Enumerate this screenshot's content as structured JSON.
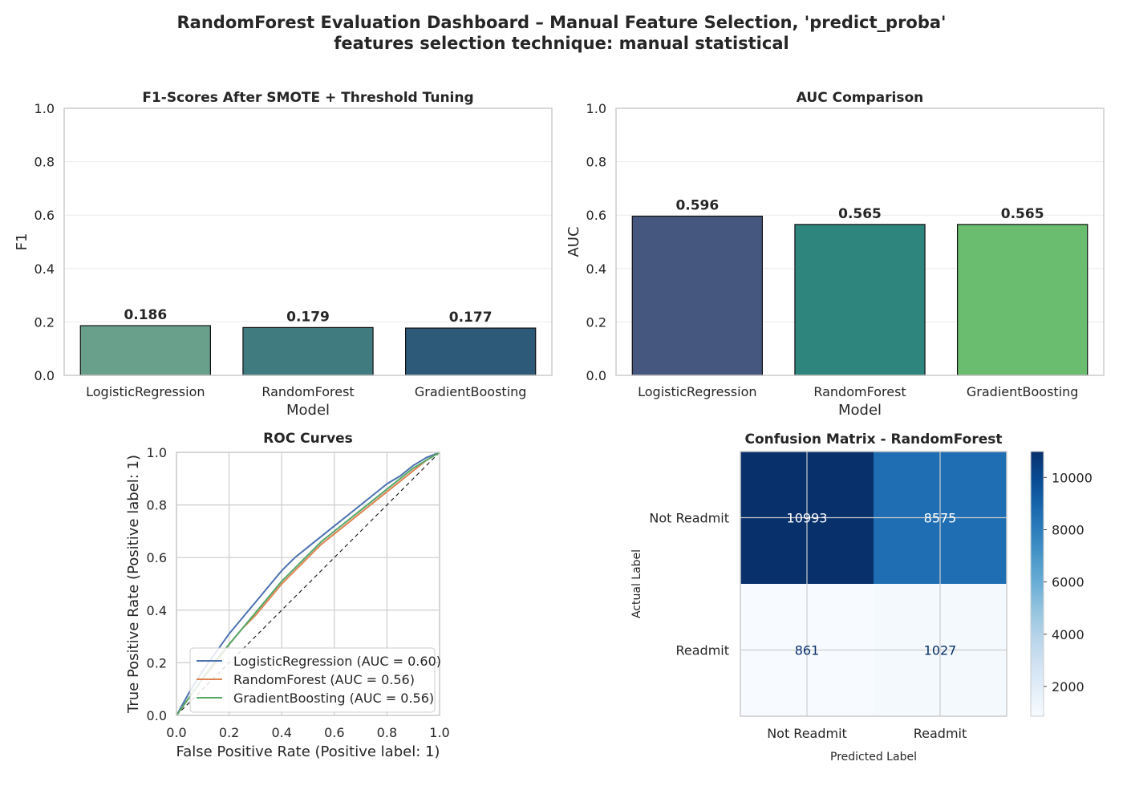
{
  "figure": {
    "title_line1": "RandomForest Evaluation Dashboard – Manual Feature Selection, 'predict_proba'",
    "title_line2": "features selection technique: manual statistical"
  },
  "chart_data": [
    {
      "id": "f1",
      "type": "bar",
      "title": "F1-Scores After SMOTE + Threshold Tuning",
      "xlabel": "Model",
      "ylabel": "F1",
      "categories": [
        "LogisticRegression",
        "RandomForest",
        "GradientBoosting"
      ],
      "values": [
        0.186,
        0.179,
        0.177
      ],
      "value_labels": [
        "0.186",
        "0.179",
        "0.177"
      ],
      "bar_colors": [
        "#69a08b",
        "#407b80",
        "#2d5a79"
      ],
      "ylim": [
        0,
        1.0
      ],
      "yticks": [
        0.0,
        0.2,
        0.4,
        0.6,
        0.8,
        1.0
      ],
      "ytick_labels": [
        "0.0",
        "0.2",
        "0.4",
        "0.6",
        "0.8",
        "1.0"
      ],
      "grid": true
    },
    {
      "id": "auc",
      "type": "bar",
      "title": "AUC Comparison",
      "xlabel": "Model",
      "ylabel": "AUC",
      "categories": [
        "LogisticRegression",
        "RandomForest",
        "GradientBoosting"
      ],
      "values": [
        0.596,
        0.565,
        0.565
      ],
      "value_labels": [
        "0.596",
        "0.565",
        "0.565"
      ],
      "bar_colors": [
        "#46577f",
        "#2e857e",
        "#6abd6e"
      ],
      "ylim": [
        0,
        1.0
      ],
      "yticks": [
        0.0,
        0.2,
        0.4,
        0.6,
        0.8,
        1.0
      ],
      "ytick_labels": [
        "0.0",
        "0.2",
        "0.4",
        "0.6",
        "0.8",
        "1.0"
      ],
      "grid": true
    },
    {
      "id": "roc",
      "type": "line",
      "title": "ROC Curves",
      "xlabel": "False Positive Rate (Positive label: 1)",
      "ylabel": "True Positive Rate (Positive label: 1)",
      "xlim": [
        0,
        1.0
      ],
      "ylim": [
        0,
        1.0
      ],
      "ticks": [
        0.0,
        0.2,
        0.4,
        0.6,
        0.8,
        1.0
      ],
      "tick_labels": [
        "0.0",
        "0.2",
        "0.4",
        "0.6",
        "0.8",
        "1.0"
      ],
      "grid": true,
      "legend_position": "lower-right",
      "series": [
        {
          "name": "LogisticRegression (AUC = 0.60)",
          "color": "#4c72b0",
          "points": [
            [
              0,
              0
            ],
            [
              0.05,
              0.09
            ],
            [
              0.1,
              0.17
            ],
            [
              0.15,
              0.24
            ],
            [
              0.2,
              0.31
            ],
            [
              0.25,
              0.37
            ],
            [
              0.3,
              0.43
            ],
            [
              0.35,
              0.49
            ],
            [
              0.4,
              0.55
            ],
            [
              0.45,
              0.6
            ],
            [
              0.5,
              0.64
            ],
            [
              0.55,
              0.68
            ],
            [
              0.6,
              0.72
            ],
            [
              0.65,
              0.76
            ],
            [
              0.7,
              0.8
            ],
            [
              0.75,
              0.84
            ],
            [
              0.8,
              0.88
            ],
            [
              0.85,
              0.91
            ],
            [
              0.9,
              0.95
            ],
            [
              0.95,
              0.98
            ],
            [
              1,
              1
            ]
          ]
        },
        {
          "name": "RandomForest (AUC = 0.56)",
          "color": "#dd8452",
          "points": [
            [
              0,
              0
            ],
            [
              0.05,
              0.07
            ],
            [
              0.1,
              0.14
            ],
            [
              0.15,
              0.2
            ],
            [
              0.2,
              0.27
            ],
            [
              0.25,
              0.33
            ],
            [
              0.3,
              0.38
            ],
            [
              0.35,
              0.44
            ],
            [
              0.4,
              0.5
            ],
            [
              0.45,
              0.55
            ],
            [
              0.5,
              0.6
            ],
            [
              0.55,
              0.65
            ],
            [
              0.6,
              0.69
            ],
            [
              0.65,
              0.73
            ],
            [
              0.7,
              0.77
            ],
            [
              0.75,
              0.81
            ],
            [
              0.8,
              0.85
            ],
            [
              0.85,
              0.89
            ],
            [
              0.9,
              0.93
            ],
            [
              0.95,
              0.97
            ],
            [
              1,
              1
            ]
          ]
        },
        {
          "name": "GradientBoosting (AUC = 0.56)",
          "color": "#55a868",
          "points": [
            [
              0,
              0
            ],
            [
              0.05,
              0.07
            ],
            [
              0.1,
              0.14
            ],
            [
              0.15,
              0.21
            ],
            [
              0.2,
              0.27
            ],
            [
              0.25,
              0.33
            ],
            [
              0.3,
              0.39
            ],
            [
              0.35,
              0.45
            ],
            [
              0.4,
              0.51
            ],
            [
              0.45,
              0.56
            ],
            [
              0.5,
              0.61
            ],
            [
              0.55,
              0.66
            ],
            [
              0.6,
              0.7
            ],
            [
              0.65,
              0.74
            ],
            [
              0.7,
              0.78
            ],
            [
              0.75,
              0.82
            ],
            [
              0.8,
              0.86
            ],
            [
              0.85,
              0.9
            ],
            [
              0.9,
              0.94
            ],
            [
              0.95,
              0.97
            ],
            [
              1,
              1
            ]
          ]
        }
      ],
      "diagonal": {
        "points": [
          [
            0,
            0
          ],
          [
            1,
            1
          ]
        ],
        "color": "#222222",
        "style": "dashed"
      }
    },
    {
      "id": "cm",
      "type": "heatmap",
      "title": "Confusion Matrix - RandomForest",
      "xlabel": "Predicted Label",
      "ylabel": "Actual Label",
      "row_labels": [
        "Not Readmit",
        "Readmit"
      ],
      "col_labels": [
        "Not Readmit",
        "Readmit"
      ],
      "values": [
        [
          10993,
          8575
        ],
        [
          861,
          1027
        ]
      ],
      "value_labels": [
        [
          "10993",
          "8575"
        ],
        [
          "861",
          "1027"
        ]
      ],
      "colormap": "Blues",
      "vmin": 861,
      "vmax": 10993,
      "colorbar_ticks": [
        2000,
        4000,
        6000,
        8000,
        10000
      ],
      "colorbar_tick_labels": [
        "2000",
        "4000",
        "6000",
        "8000",
        "10000"
      ]
    }
  ]
}
